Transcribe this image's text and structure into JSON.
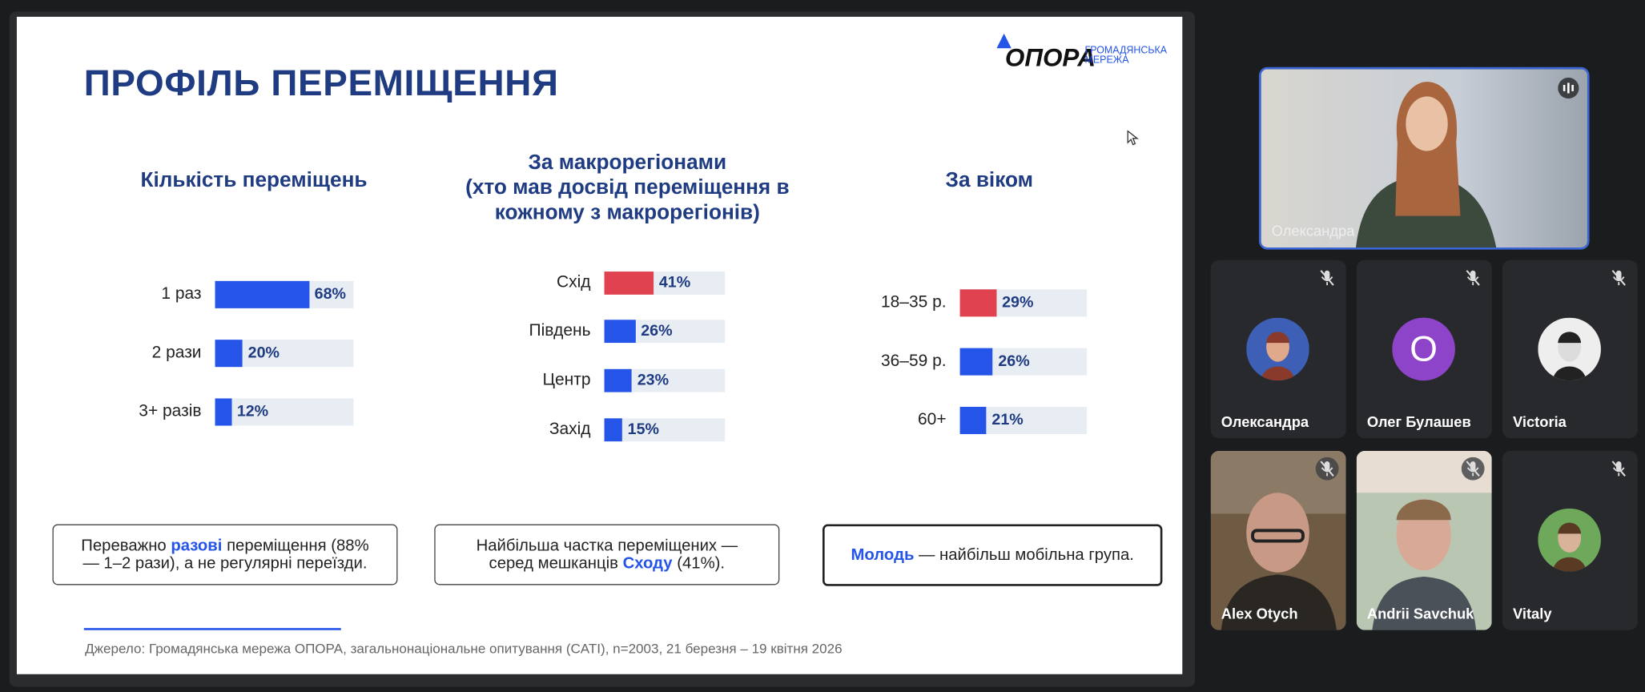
{
  "slide": {
    "title": "ПРОФІЛЬ ПЕРЕМІЩЕННЯ",
    "logo": {
      "name": "ОПОРА",
      "tagline": [
        "ГРОМАДЯНСЬКА",
        "МЕРЕЖА"
      ]
    },
    "charts": [
      {
        "type": "bar",
        "title": [
          "Кількість переміщень"
        ],
        "categories": [
          "1 раз",
          "2 рази",
          "3+ разів"
        ],
        "values": [
          68,
          20,
          12
        ],
        "value_labels": [
          "68%",
          "20%",
          "12%"
        ],
        "colors": [
          "#2454e8",
          "#2454e8",
          "#2454e8"
        ],
        "xlim": [
          0,
          100
        ]
      },
      {
        "type": "bar",
        "title": [
          "За макрорегіонами",
          "(хто мав досвід переміщення в",
          "кожному з макрорегіонів)"
        ],
        "categories": [
          "Схід",
          "Південь",
          "Центр",
          "Захід"
        ],
        "values": [
          41,
          26,
          23,
          15
        ],
        "value_labels": [
          "41%",
          "26%",
          "23%",
          "15%"
        ],
        "colors": [
          "#e0424f",
          "#2454e8",
          "#2454e8",
          "#2454e8"
        ],
        "xlim": [
          0,
          100
        ]
      },
      {
        "type": "bar",
        "title": [
          "За віком"
        ],
        "categories": [
          "18–35 р.",
          "36–59 р.",
          "60+"
        ],
        "values": [
          29,
          26,
          21
        ],
        "value_labels": [
          "29%",
          "26%",
          "21%"
        ],
        "colors": [
          "#e0424f",
          "#2454e8",
          "#2454e8"
        ],
        "xlim": [
          0,
          100
        ]
      }
    ],
    "notes": [
      {
        "before": "Переважно ",
        "highlight": "разові",
        "after": " переміщення (88% — 1–2 рази), а не регулярні переїзди."
      },
      {
        "before": "Найбільша частка переміщених — серед мешканців ",
        "highlight": "Сходу",
        "after": " (41%)."
      },
      {
        "highlight": "Молодь",
        "after": " — найбільш мобільна група."
      }
    ],
    "source": "Джерело: Громадянська мережа ОПОРА, загальнонаціональне опитування (CATI), n=2003, 21 березня – 19 квітня 2026"
  },
  "participants": {
    "main": {
      "name": "Олександра"
    },
    "tiles": [
      {
        "name": "Олександра"
      },
      {
        "name": "Олег Булашев",
        "initial": "O"
      },
      {
        "name": "Victoria"
      },
      {
        "name": "Alex Otych"
      },
      {
        "name": "Andrii Savchuk"
      },
      {
        "name": "Vitaly"
      }
    ]
  }
}
